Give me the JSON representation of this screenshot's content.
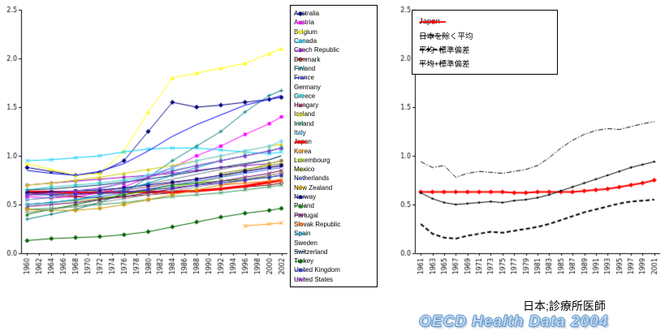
{
  "captions": {
    "subject": "日本;診療所医師",
    "source": "OECD Health Data 2004"
  },
  "chart_data": [
    {
      "id": "oecd-countries",
      "type": "line",
      "title": "",
      "xlabel": "",
      "ylabel": "",
      "xlim": [
        1959,
        2003
      ],
      "ylim": [
        0,
        2.5
      ],
      "yticks": [
        0,
        0.5,
        1.0,
        1.5,
        2.0,
        2.5
      ],
      "xticks": [
        1960,
        1962,
        1964,
        1966,
        1968,
        1970,
        1972,
        1974,
        1976,
        1978,
        1980,
        1982,
        1984,
        1986,
        1988,
        1990,
        1992,
        1994,
        1996,
        1998,
        2000,
        2002
      ],
      "grid": false,
      "legend_position": "right",
      "x": [
        1960,
        1964,
        1968,
        1972,
        1976,
        1980,
        1984,
        1988,
        1992,
        1996,
        2000,
        2002
      ],
      "series": [
        {
          "name": "Australia",
          "color": "#000080",
          "marker": "diamond",
          "values": [
            0.88,
            0.84,
            0.8,
            0.83,
            0.95,
            1.25,
            1.55,
            1.5,
            1.52,
            1.55,
            1.58,
            1.6
          ]
        },
        {
          "name": "Austria",
          "color": "#FF00FF",
          "marker": "square",
          "values": [
            0.58,
            0.57,
            0.58,
            0.62,
            0.68,
            0.78,
            0.88,
            1.0,
            1.1,
            1.22,
            1.33,
            1.4
          ]
        },
        {
          "name": "Belgium",
          "color": "#FFFF00",
          "marker": "triangle",
          "values": [
            0.92,
            0.86,
            0.8,
            0.82,
            1.05,
            1.45,
            1.8,
            1.85,
            1.9,
            1.95,
            2.05,
            2.1
          ]
        },
        {
          "name": "Canada",
          "color": "#00CCFF",
          "marker": "x",
          "values": [
            0.95,
            0.96,
            0.98,
            1.0,
            1.04,
            1.07,
            1.08,
            1.08,
            1.06,
            1.04,
            1.02,
            1.04
          ]
        },
        {
          "name": "Czech Republic",
          "color": "#9900CC",
          "marker": "star",
          "values": [
            0.7,
            0.72,
            0.74,
            0.76,
            0.78,
            0.8,
            0.82,
            0.85,
            0.88,
            0.9,
            0.92,
            0.95
          ]
        },
        {
          "name": "Denmark",
          "color": "#800000",
          "marker": "circle",
          "values": [
            0.62,
            0.6,
            0.58,
            0.57,
            0.58,
            0.6,
            0.62,
            0.64,
            0.66,
            0.68,
            0.7,
            0.72
          ]
        },
        {
          "name": "Finland",
          "color": "#008080",
          "marker": "plus",
          "values": [
            0.35,
            0.4,
            0.45,
            0.52,
            0.62,
            0.78,
            0.95,
            1.1,
            1.25,
            1.45,
            1.62,
            1.67
          ]
        },
        {
          "name": "France",
          "color": "#0000FF",
          "marker": "none",
          "values": [
            0.85,
            0.82,
            0.8,
            0.84,
            0.92,
            1.05,
            1.2,
            1.32,
            1.42,
            1.52,
            1.58,
            1.62
          ]
        },
        {
          "name": "Germany",
          "color": "#708090",
          "marker": "none",
          "values": [
            0.6,
            0.61,
            0.62,
            0.64,
            0.67,
            0.71,
            0.76,
            0.81,
            0.86,
            0.91,
            0.96,
            1.0
          ]
        },
        {
          "name": "Greece",
          "color": "#33CCCC",
          "marker": "diamond",
          "values": [
            0.65,
            0.68,
            0.7,
            0.72,
            0.75,
            0.8,
            0.85,
            0.9,
            0.95,
            1.0,
            1.05,
            1.08
          ]
        },
        {
          "name": "Hungary",
          "color": "#993366",
          "marker": "square",
          "values": [
            0.55,
            0.57,
            0.6,
            0.62,
            0.65,
            0.68,
            0.72,
            0.76,
            0.8,
            0.84,
            0.88,
            0.9
          ]
        },
        {
          "name": "Iceland",
          "color": "#CCCC00",
          "marker": "triangle",
          "values": [
            0.7,
            0.72,
            0.75,
            0.78,
            0.82,
            0.86,
            0.9,
            0.95,
            1.0,
            1.05,
            1.1,
            1.12
          ]
        },
        {
          "name": "Ireland",
          "color": "#339966",
          "marker": "x",
          "values": [
            0.45,
            0.46,
            0.48,
            0.5,
            0.52,
            0.55,
            0.58,
            0.6,
            0.62,
            0.65,
            0.68,
            0.7
          ]
        },
        {
          "name": "Italy",
          "color": "#66CCFF",
          "marker": "star",
          "values": [
            0.55,
            0.58,
            0.62,
            0.66,
            0.72,
            0.8,
            0.88,
            0.95,
            1.0,
            1.05,
            1.1,
            1.15
          ]
        },
        {
          "name": "Japan",
          "color": "#FF0000",
          "marker": "none",
          "width": 3,
          "values": [
            0.63,
            0.63,
            0.62,
            0.62,
            0.63,
            0.63,
            0.63,
            0.64,
            0.66,
            0.69,
            0.73,
            0.75
          ]
        },
        {
          "name": "Korea",
          "color": "#FF9900",
          "marker": "x",
          "values": [
            null,
            null,
            null,
            null,
            null,
            null,
            null,
            null,
            null,
            0.28,
            0.3,
            0.31
          ]
        },
        {
          "name": "Luxembourg",
          "color": "#99CC00",
          "marker": "circle",
          "values": [
            0.5,
            0.52,
            0.54,
            0.56,
            0.6,
            0.64,
            0.68,
            0.72,
            0.78,
            0.85,
            0.92,
            0.95
          ]
        },
        {
          "name": "Mexico",
          "color": "#808000",
          "marker": "plus",
          "values": [
            null,
            null,
            null,
            null,
            null,
            null,
            null,
            null,
            0.82,
            0.86,
            0.9,
            0.92
          ]
        },
        {
          "name": "Netherlands",
          "color": "#3366FF",
          "marker": "none",
          "values": [
            0.5,
            0.52,
            0.55,
            0.58,
            0.62,
            0.66,
            0.7,
            0.74,
            0.78,
            0.82,
            0.86,
            0.88
          ]
        },
        {
          "name": "New Zealand",
          "color": "#CC9900",
          "marker": "diamond",
          "values": [
            0.45,
            0.44,
            0.44,
            0.46,
            0.5,
            0.55,
            0.6,
            0.65,
            0.7,
            0.75,
            0.8,
            0.82
          ]
        },
        {
          "name": "Norway",
          "color": "#000080",
          "marker": "square",
          "values": [
            0.62,
            0.63,
            0.64,
            0.65,
            0.67,
            0.7,
            0.73,
            0.76,
            0.8,
            0.84,
            0.88,
            0.9
          ]
        },
        {
          "name": "Poland",
          "color": "#008000",
          "marker": "triangle",
          "values": [
            0.4,
            0.45,
            0.5,
            0.55,
            0.6,
            0.65,
            0.7,
            0.72,
            0.74,
            0.76,
            0.78,
            0.8
          ]
        },
        {
          "name": "Portugal",
          "color": "#660066",
          "marker": "x",
          "values": [
            0.48,
            0.5,
            0.52,
            0.55,
            0.58,
            0.62,
            0.66,
            0.7,
            0.74,
            0.78,
            0.82,
            0.85
          ]
        },
        {
          "name": "Slovak Republic",
          "color": "#FF6600",
          "marker": "star",
          "values": [
            null,
            null,
            null,
            null,
            null,
            null,
            null,
            null,
            0.7,
            0.72,
            0.74,
            0.75
          ]
        },
        {
          "name": "Spain",
          "color": "#0099CC",
          "marker": "circle",
          "values": [
            0.5,
            0.52,
            0.55,
            0.6,
            0.65,
            0.72,
            0.8,
            0.88,
            0.95,
            1.0,
            1.05,
            1.08
          ]
        },
        {
          "name": "Sweden",
          "color": "#969696",
          "marker": "plus",
          "values": [
            0.42,
            0.45,
            0.48,
            0.52,
            0.56,
            0.6,
            0.64,
            0.68,
            0.72,
            0.76,
            0.8,
            0.82
          ]
        },
        {
          "name": "Switzerland",
          "color": "#003366",
          "marker": "none",
          "values": [
            0.65,
            0.66,
            0.68,
            0.7,
            0.73,
            0.76,
            0.8,
            0.84,
            0.88,
            0.92,
            0.96,
            1.0
          ]
        },
        {
          "name": "Turkey",
          "color": "#006400",
          "marker": "diamond",
          "values": [
            0.13,
            0.15,
            0.16,
            0.17,
            0.19,
            0.22,
            0.27,
            0.32,
            0.37,
            0.41,
            0.44,
            0.46
          ]
        },
        {
          "name": "United Kingdom",
          "color": "#3333CC",
          "marker": "square",
          "values": [
            0.6,
            0.6,
            0.61,
            0.62,
            0.63,
            0.65,
            0.67,
            0.7,
            0.72,
            0.75,
            0.78,
            0.8
          ]
        },
        {
          "name": "United States",
          "color": "#9933CC",
          "marker": "triangle",
          "values": [
            0.6,
            0.62,
            0.64,
            0.67,
            0.72,
            0.78,
            0.84,
            0.9,
            0.95,
            1.0,
            1.05,
            1.08
          ]
        }
      ]
    },
    {
      "id": "japan-vs-average",
      "type": "line",
      "title": "",
      "xlabel": "",
      "ylabel": "",
      "xlim": [
        1960,
        2002
      ],
      "ylim": [
        0,
        2.5
      ],
      "yticks": [
        0,
        0.5,
        1.0,
        1.5,
        2.0,
        2.5
      ],
      "xticks": [
        1961,
        1963,
        1965,
        1967,
        1969,
        1971,
        1973,
        1975,
        1977,
        1979,
        1981,
        1983,
        1985,
        1987,
        1989,
        1991,
        1993,
        1995,
        1997,
        1999,
        2001
      ],
      "grid": false,
      "legend_position": "top-inside",
      "x": [
        1961,
        1963,
        1965,
        1967,
        1969,
        1971,
        1973,
        1975,
        1977,
        1979,
        1981,
        1983,
        1985,
        1987,
        1989,
        1991,
        1993,
        1995,
        1997,
        1999,
        2001
      ],
      "series": [
        {
          "name": "Japan",
          "color": "#FF0000",
          "marker": "diamond",
          "width": 2,
          "values": [
            0.63,
            0.63,
            0.63,
            0.63,
            0.63,
            0.63,
            0.63,
            0.63,
            0.62,
            0.62,
            0.63,
            0.63,
            0.63,
            0.63,
            0.64,
            0.65,
            0.66,
            0.68,
            0.7,
            0.72,
            0.75
          ]
        },
        {
          "name": "日本を除く平均",
          "color": "#000000",
          "marker": "dot",
          "width": 1,
          "values": [
            0.62,
            0.56,
            0.52,
            0.5,
            0.51,
            0.52,
            0.53,
            0.52,
            0.54,
            0.55,
            0.57,
            0.6,
            0.64,
            0.68,
            0.72,
            0.76,
            0.8,
            0.84,
            0.88,
            0.91,
            0.94
          ]
        },
        {
          "name": "平均−標準偏差",
          "color": "#000000",
          "marker": "none",
          "width": 2,
          "dash": "dashed",
          "values": [
            0.3,
            0.2,
            0.16,
            0.15,
            0.18,
            0.2,
            0.22,
            0.21,
            0.23,
            0.25,
            0.27,
            0.3,
            0.34,
            0.38,
            0.42,
            0.45,
            0.48,
            0.51,
            0.53,
            0.54,
            0.55
          ]
        },
        {
          "name": "平均+標準偏差",
          "color": "#000000",
          "marker": "none",
          "width": 1,
          "dash": "dashdot",
          "values": [
            0.94,
            0.88,
            0.9,
            0.78,
            0.82,
            0.84,
            0.83,
            0.82,
            0.84,
            0.86,
            0.9,
            0.98,
            1.08,
            1.16,
            1.22,
            1.26,
            1.28,
            1.27,
            1.3,
            1.33,
            1.35
          ]
        }
      ]
    }
  ]
}
